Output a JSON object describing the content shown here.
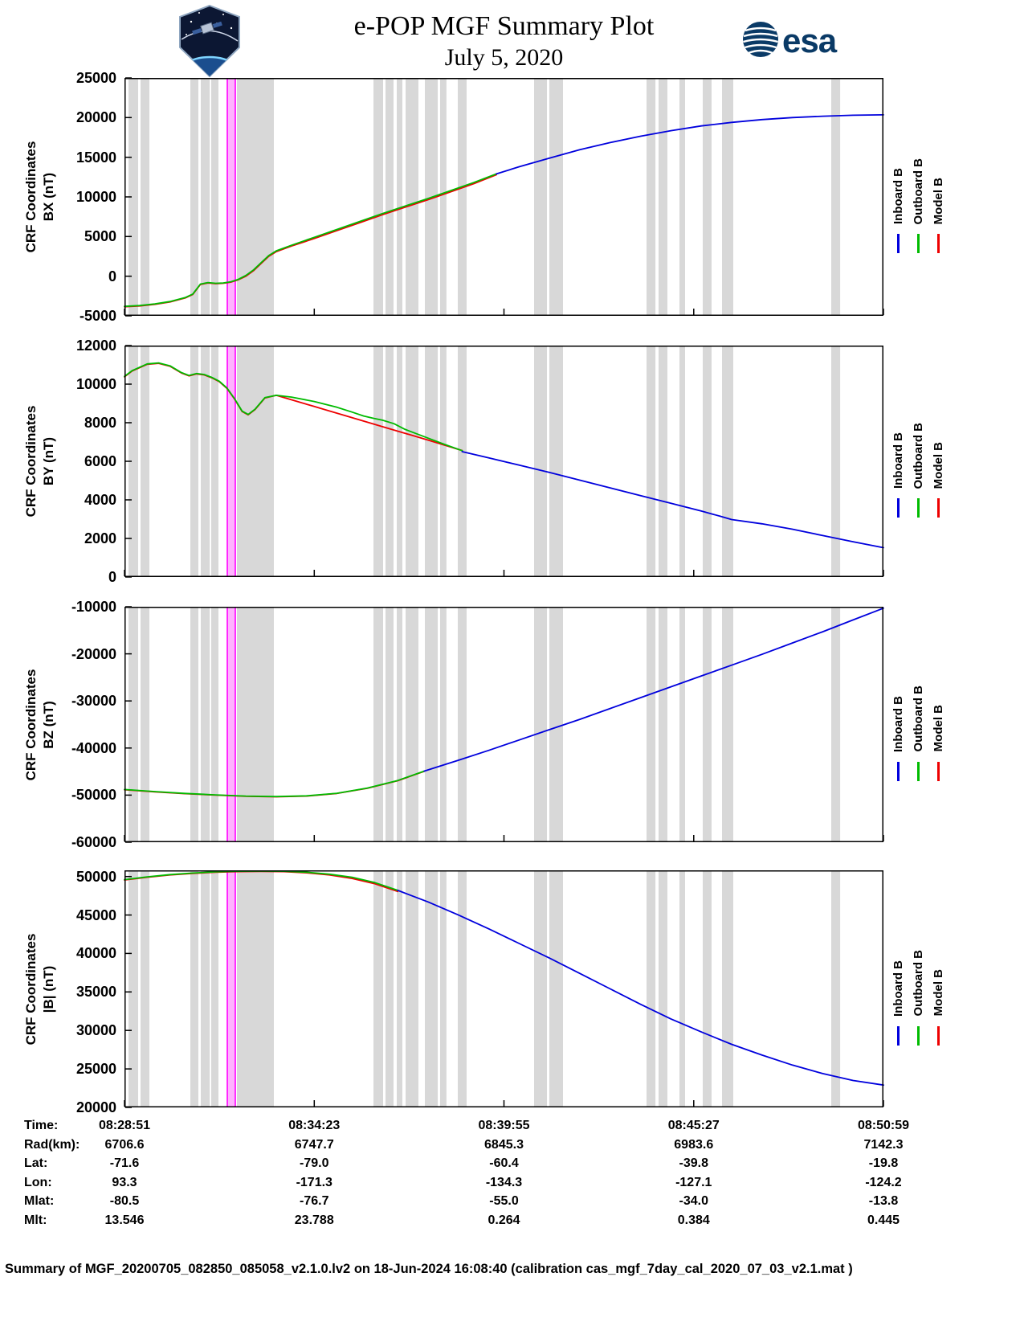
{
  "header": {
    "title": "e-POP MGF Summary Plot",
    "date": "July 5, 2020",
    "esa_wordmark": "esa"
  },
  "colors": {
    "inboard_blue": "#0000dd",
    "outboard_green": "#00bb00",
    "model_red": "#ee0000",
    "band_gray": "#d8d8d8",
    "highlight_magenta": "#ff00ff",
    "highlight_fill": "#ffb3ff",
    "esa_blue": "#0a3a66",
    "axis_black": "#000000"
  },
  "legend": {
    "entries": [
      {
        "key": "inboard",
        "label": "Inboard B",
        "color": "#0000dd"
      },
      {
        "key": "outboard",
        "label": "Outboard B",
        "color": "#00bb00"
      },
      {
        "key": "model",
        "label": "Model B",
        "color": "#ee0000"
      }
    ]
  },
  "bottom_table": {
    "rows": [
      {
        "label": "Time:",
        "values": [
          "08:28:51",
          "08:34:23",
          "08:39:55",
          "08:45:27",
          "08:50:59"
        ]
      },
      {
        "label": "Rad(km):",
        "values": [
          "6706.6",
          "6747.7",
          "6845.3",
          "6983.6",
          "7142.3"
        ]
      },
      {
        "label": "Lat:",
        "values": [
          "-71.6",
          "-79.0",
          "-60.4",
          "-39.8",
          "-19.8"
        ]
      },
      {
        "label": "Lon:",
        "values": [
          "93.3",
          "-171.3",
          "-134.3",
          "-127.1",
          "-124.2"
        ]
      },
      {
        "label": "Mlat:",
        "values": [
          "-80.5",
          "-76.7",
          "-55.0",
          "-34.0",
          "-13.8"
        ]
      },
      {
        "label": "Mlt:",
        "values": [
          "13.546",
          "23.788",
          "0.264",
          "0.384",
          "0.445"
        ]
      }
    ]
  },
  "footer": "Summary of MGF_20200705_082850_085058_v2.1.0.lv2 on 18-Jun-2024 16:08:40 (calibration cas_mgf_7day_cal_2020_07_03_v2.1.mat )",
  "chart_data": {
    "type": "line",
    "title": "e-POP MGF Summary Plot, July 5, 2020",
    "x_axis": {
      "tick_positions": [
        0,
        0.25,
        0.5,
        0.75,
        1
      ],
      "tick_time_labels": [
        "08:28:51",
        "08:34:23",
        "08:39:55",
        "08:45:27",
        "08:50:59"
      ]
    },
    "shade_bands": [
      [
        0.0053,
        0.018
      ],
      [
        0.0212,
        0.0328
      ],
      [
        0.0868,
        0.0974
      ],
      [
        0.1005,
        0.1122
      ],
      [
        0.1143,
        0.1238
      ],
      [
        0.1481,
        0.1968
      ],
      [
        0.328,
        0.3407
      ],
      [
        0.3439,
        0.3545
      ],
      [
        0.3587,
        0.3661
      ],
      [
        0.3704,
        0.3873
      ],
      [
        0.3958,
        0.4127
      ],
      [
        0.4159,
        0.4243
      ],
      [
        0.4392,
        0.4508
      ],
      [
        0.5397,
        0.5566
      ],
      [
        0.5598,
        0.5778
      ],
      [
        0.6878,
        0.6995
      ],
      [
        0.7037,
        0.7153
      ],
      [
        0.7312,
        0.7386
      ],
      [
        0.7619,
        0.7735
      ],
      [
        0.7873,
        0.8021
      ],
      [
        0.9312,
        0.9429
      ]
    ],
    "highlight_band": [
      0.1354,
      0.146
    ],
    "panels": [
      {
        "id": "BX",
        "ylabel_line1": "CRF Coordinates",
        "ylabel_line2": "BX (nT)",
        "ylim": [
          -5000,
          25000
        ],
        "yticks": [
          25000,
          20000,
          15000,
          10000,
          5000,
          0,
          -5000
        ],
        "series": [
          {
            "key": "model",
            "name": "Model B",
            "color": "#ee0000",
            "x": [
              0,
              0.02,
              0.04,
              0.06,
              0.08,
              0.09,
              0.1,
              0.11,
              0.12,
              0.13,
              0.14,
              0.15,
              0.16,
              0.17,
              0.18,
              0.19,
              0.2,
              0.22,
              0.25,
              0.28,
              0.31,
              0.34,
              0.37,
              0.4,
              0.43,
              0.46,
              0.49
            ],
            "y": [
              -3850,
              -3750,
              -3550,
              -3250,
              -2750,
              -2300,
              -1050,
              -850,
              -950,
              -900,
              -750,
              -450,
              0,
              700,
              1600,
              2500,
              3100,
              3800,
              4750,
              5750,
              6750,
              7750,
              8700,
              9650,
              10650,
              11650,
              12800
            ]
          },
          {
            "key": "outboard",
            "name": "Outboard B",
            "color": "#00bb00",
            "x": [
              0,
              0.02,
              0.04,
              0.06,
              0.08,
              0.09,
              0.1,
              0.11,
              0.12,
              0.13,
              0.14,
              0.15,
              0.16,
              0.17,
              0.18,
              0.19,
              0.2,
              0.22,
              0.25,
              0.28,
              0.31,
              0.34,
              0.37,
              0.4,
              0.43,
              0.46,
              0.49
            ],
            "y": [
              -3800,
              -3700,
              -3500,
              -3200,
              -2700,
              -2250,
              -1000,
              -800,
              -900,
              -850,
              -700,
              -400,
              100,
              800,
              1700,
              2600,
              3200,
              3900,
              4900,
              5900,
              6900,
              7900,
              8850,
              9800,
              10800,
              11800,
              12900
            ]
          },
          {
            "key": "inboard",
            "name": "Inboard B",
            "color": "#0000dd",
            "x": [
              0.49,
              0.52,
              0.56,
              0.6,
              0.64,
              0.68,
              0.72,
              0.76,
              0.8,
              0.84,
              0.88,
              0.92,
              0.96,
              1
            ],
            "y": [
              12900,
              13800,
              14900,
              15950,
              16850,
              17650,
              18350,
              18950,
              19400,
              19750,
              20000,
              20180,
              20300,
              20350
            ]
          }
        ]
      },
      {
        "id": "BY",
        "ylabel_line1": "CRF Coordinates",
        "ylabel_line2": "BY (nT)",
        "ylim": [
          0,
          12000
        ],
        "yticks": [
          12000,
          10000,
          8000,
          6000,
          4000,
          2000,
          0
        ],
        "series": [
          {
            "key": "model",
            "name": "Model B",
            "color": "#ee0000",
            "x": [
              0,
              0.01,
              0.03,
              0.045,
              0.06,
              0.075,
              0.085,
              0.095,
              0.105,
              0.115,
              0.125,
              0.135,
              0.145,
              0.155,
              0.163,
              0.172,
              0.185,
              0.2,
              0.25,
              0.3,
              0.35,
              0.4,
              0.445
            ],
            "y": [
              10380,
              10680,
              11030,
              11080,
              10930,
              10580,
              10430,
              10530,
              10480,
              10330,
              10130,
              9780,
              9230,
              8580,
              8410,
              8680,
              9280,
              9420,
              8840,
              8260,
              7680,
              7100,
              6560
            ]
          },
          {
            "key": "outboard",
            "name": "Outboard B",
            "color": "#00bb00",
            "x": [
              0,
              0.01,
              0.03,
              0.045,
              0.06,
              0.075,
              0.085,
              0.095,
              0.105,
              0.115,
              0.125,
              0.135,
              0.145,
              0.155,
              0.163,
              0.172,
              0.185,
              0.2,
              0.22,
              0.25,
              0.28,
              0.3,
              0.315,
              0.328,
              0.34,
              0.355,
              0.37,
              0.4,
              0.42,
              0.445
            ],
            "y": [
              10400,
              10700,
              11050,
              11100,
              10950,
              10600,
              10450,
              10550,
              10500,
              10350,
              10150,
              9800,
              9250,
              8600,
              8430,
              8700,
              9300,
              9420,
              9330,
              9100,
              8800,
              8550,
              8350,
              8230,
              8130,
              7950,
              7650,
              7200,
              6900,
              6550
            ]
          },
          {
            "key": "inboard",
            "name": "Inboard B",
            "color": "#0000dd",
            "x": [
              0.445,
              0.48,
              0.52,
              0.56,
              0.6,
              0.64,
              0.68,
              0.72,
              0.76,
              0.785,
              0.8,
              0.84,
              0.88,
              0.92,
              0.96,
              1
            ],
            "y": [
              6500,
              6180,
              5800,
              5420,
              5020,
              4620,
              4220,
              3820,
              3420,
              3150,
              2980,
              2760,
              2480,
              2150,
              1830,
              1520
            ]
          }
        ]
      },
      {
        "id": "BZ",
        "ylabel_line1": "CRF Coordinates",
        "ylabel_line2": "BZ (nT)",
        "ylim": [
          -60000,
          -10000
        ],
        "yticks": [
          -10000,
          -20000,
          -30000,
          -40000,
          -50000,
          -60000
        ],
        "series": [
          {
            "key": "model",
            "name": "Model B",
            "color": "#ee0000",
            "x": [
              0,
              0.04,
              0.08,
              0.12,
              0.16,
              0.2,
              0.24,
              0.28,
              0.32,
              0.36,
              0.395
            ],
            "y": [
              -48850,
              -49300,
              -49700,
              -50000,
              -50250,
              -50350,
              -50200,
              -49650,
              -48550,
              -46950,
              -44950
            ]
          },
          {
            "key": "outboard",
            "name": "Outboard B",
            "color": "#00bb00",
            "x": [
              0,
              0.04,
              0.08,
              0.12,
              0.16,
              0.2,
              0.24,
              0.28,
              0.32,
              0.36,
              0.395
            ],
            "y": [
              -48800,
              -49250,
              -49650,
              -49950,
              -50200,
              -50300,
              -50150,
              -49600,
              -48500,
              -46900,
              -44900
            ]
          },
          {
            "key": "inboard",
            "name": "Inboard B",
            "color": "#0000dd",
            "x": [
              0.395,
              0.44,
              0.48,
              0.52,
              0.56,
              0.6,
              0.64,
              0.68,
              0.72,
              0.76,
              0.8,
              0.84,
              0.88,
              0.92,
              0.96,
              1
            ],
            "y": [
              -44900,
              -42600,
              -40500,
              -38300,
              -36100,
              -33900,
              -31600,
              -29300,
              -27000,
              -24700,
              -22400,
              -20100,
              -17700,
              -15300,
              -12800,
              -10300
            ]
          }
        ]
      },
      {
        "id": "Bmag",
        "ylabel_line1": "CRF Coordinates",
        "ylabel_line2": "|B| (nT)",
        "ylim": [
          20000,
          50800
        ],
        "yticks": [
          50000,
          45000,
          40000,
          35000,
          30000,
          25000,
          20000
        ],
        "series": [
          {
            "key": "model",
            "name": "Model B",
            "color": "#ee0000",
            "x": [
              0,
              0.03,
              0.06,
              0.09,
              0.12,
              0.15,
              0.18,
              0.21,
              0.24,
              0.27,
              0.3,
              0.33,
              0.36
            ],
            "y": [
              49550,
              49900,
              50200,
              50400,
              50550,
              50630,
              50650,
              50630,
              50480,
              50200,
              49750,
              49050,
              48050
            ]
          },
          {
            "key": "outboard",
            "name": "Outboard B",
            "color": "#00bb00",
            "x": [
              0,
              0.03,
              0.06,
              0.09,
              0.12,
              0.15,
              0.18,
              0.21,
              0.24,
              0.27,
              0.3,
              0.33,
              0.36
            ],
            "y": [
              49600,
              49950,
              50250,
              50450,
              50600,
              50680,
              50700,
              50680,
              50550,
              50300,
              49900,
              49200,
              48200
            ]
          },
          {
            "key": "inboard",
            "name": "Inboard B",
            "color": "#0000dd",
            "x": [
              0.36,
              0.4,
              0.44,
              0.48,
              0.52,
              0.56,
              0.6,
              0.64,
              0.68,
              0.72,
              0.76,
              0.8,
              0.84,
              0.88,
              0.92,
              0.96,
              1
            ],
            "y": [
              48200,
              46700,
              45000,
              43200,
              41300,
              39400,
              37400,
              35400,
              33400,
              31500,
              29800,
              28200,
              26800,
              25500,
              24400,
              23500,
              22900
            ]
          }
        ]
      }
    ]
  }
}
